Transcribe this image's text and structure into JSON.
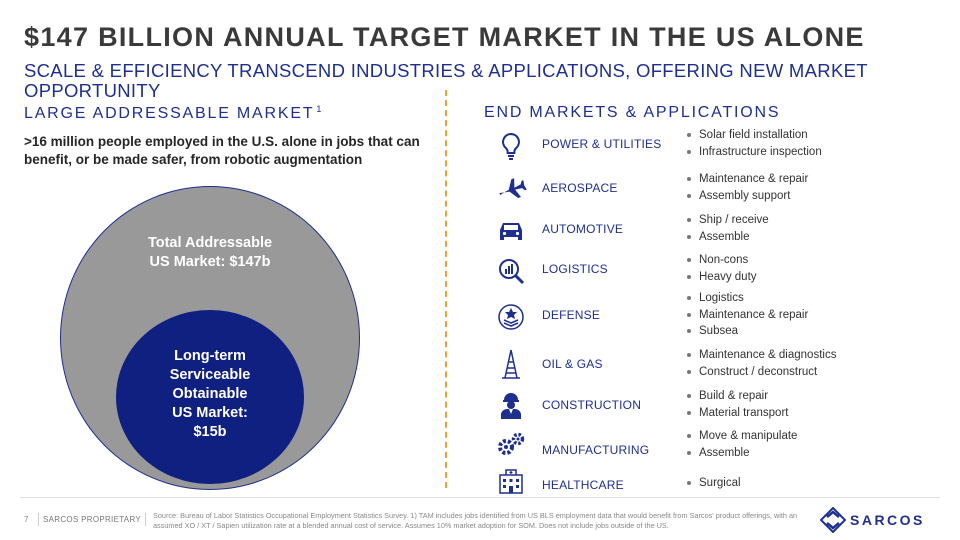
{
  "header": {
    "title": "$147 BILLION ANNUAL TARGET MARKET IN THE US ALONE",
    "subtitle": "SCALE & EFFICIENCY TRANSCEND INDUSTRIES & APPLICATIONS, OFFERING NEW MARKET OPPORTUNITY"
  },
  "left": {
    "heading": "LARGE ADDRESSABLE MARKET",
    "heading_sup": "1",
    "lead": ">16 million people employed in the U.S. alone in jobs that can benefit, or be made safer, from robotic augmentation",
    "tam_line1": "Total Addressable",
    "tam_line2": "US Market: $147b",
    "som_line1": "Long-term",
    "som_line2": "Serviceable",
    "som_line3": "Obtainable",
    "som_line4": "US Market:",
    "som_line5": "$15b"
  },
  "right": {
    "heading": "END MARKETS & APPLICATIONS",
    "markets": [
      {
        "name": "POWER & UTILITIES",
        "icon": "lightbulb-icon",
        "bullets": [
          "Solar field installation",
          "Infrastructure inspection"
        ]
      },
      {
        "name": "AEROSPACE",
        "icon": "airplane-icon",
        "bullets": [
          "Maintenance & repair",
          "Assembly support"
        ]
      },
      {
        "name": "AUTOMOTIVE",
        "icon": "car-icon",
        "bullets": [
          "Ship / receive",
          "Assemble"
        ]
      },
      {
        "name": "LOGISTICS",
        "icon": "magnifier-chart-icon",
        "bullets": [
          "Non-cons",
          "Heavy duty"
        ]
      },
      {
        "name": "DEFENSE",
        "icon": "shield-icon",
        "bullets": [
          "Logistics",
          "Maintenance & repair",
          "Subsea"
        ]
      },
      {
        "name": "OIL & GAS",
        "icon": "oil-rig-icon",
        "bullets": [
          "Maintenance & diagnostics",
          "Construct / deconstruct"
        ]
      },
      {
        "name": "CONSTRUCTION",
        "icon": "worker-icon",
        "bullets": [
          "Build & repair",
          "Material transport"
        ]
      },
      {
        "name": "MANUFACTURING",
        "icon": "gears-icon",
        "bullets": [
          "Move & manipulate",
          "Assemble"
        ]
      },
      {
        "name": "HEALTHCARE",
        "icon": "hospital-icon",
        "bullets": [
          "Surgical"
        ]
      }
    ]
  },
  "footer": {
    "page": "7",
    "proprietary": "SARCOS PROPRIETARY",
    "source": "Source: Bureau of Labor Statistics Occupational Employment Statistics Survey. 1) TAM includes jobs identified from US BLS employment data that would benefit from Sarcos' product offerings, with an assumed XO / XT / Sapien utilization rate at a blended annual cost of service. Assumes 10% market adoption for SOM. Does not include jobs outside of the US.",
    "logo_text": "SARCOS"
  },
  "colors": {
    "accent": "#1e2f8f",
    "divider": "#f0a030",
    "tam": "#999999",
    "som": "#102080"
  }
}
